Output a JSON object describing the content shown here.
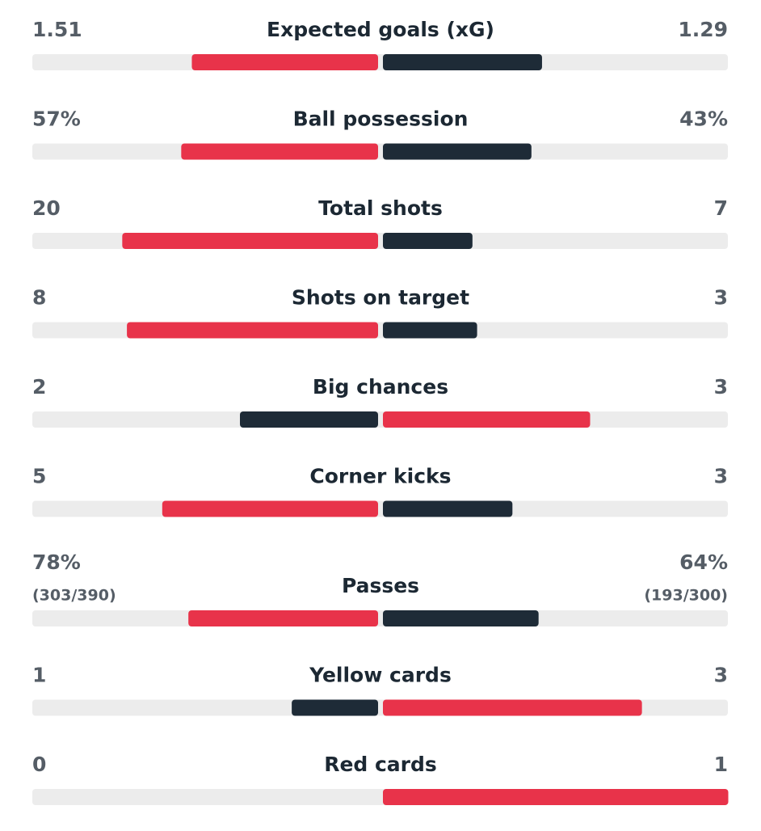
{
  "stats": [
    {
      "name": "Expected goals (xG)",
      "values": [
        1.51,
        1.29
      ]
    },
    {
      "name": "Ball possession",
      "values": [
        57,
        43
      ],
      "value_labels": [
        "57%",
        "43%"
      ]
    },
    {
      "name": "Total shots",
      "values": [
        20,
        7
      ]
    },
    {
      "name": "Shots on target",
      "values": [
        8,
        3
      ]
    },
    {
      "name": "Big chances",
      "values": [
        2,
        3
      ]
    },
    {
      "name": "Corner kicks",
      "values": [
        5,
        3
      ]
    },
    {
      "name": "Passes",
      "values": [
        78,
        64
      ],
      "value_labels": [
        "78%",
        "64%"
      ],
      "details": [
        "(303/390)",
        "(193/300)"
      ]
    },
    {
      "name": "Yellow cards",
      "values": [
        1,
        3
      ]
    },
    {
      "name": "Red cards",
      "values": [
        0,
        1
      ]
    }
  ],
  "leader_color": "#e8334a",
  "trailer_color": "#1e2b37"
}
